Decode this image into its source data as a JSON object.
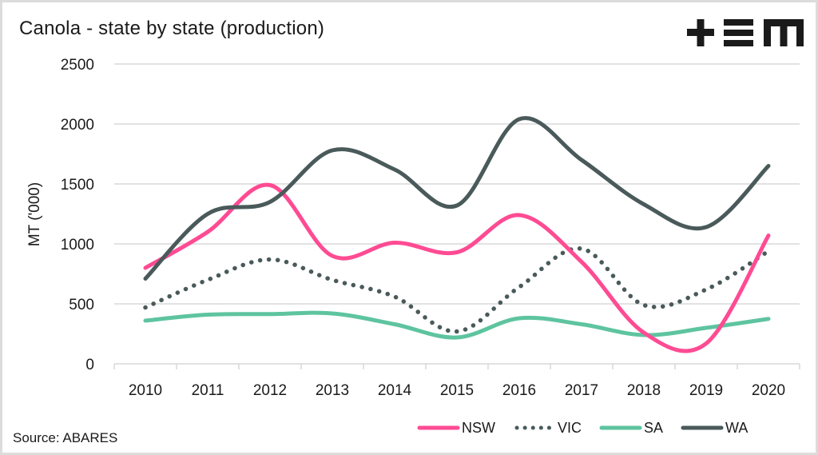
{
  "header": {
    "title": "Canola - state by state (production)",
    "logo_text": "+EM"
  },
  "footer": {
    "source": "Source: ABARES"
  },
  "chart_data": {
    "type": "line",
    "title": "Canola - state by state (production)",
    "xlabel": "",
    "ylabel": "MT ('000)",
    "ylim": [
      0,
      2500
    ],
    "yticks": [
      "0",
      "500",
      "1000",
      "1500",
      "2000",
      "2500"
    ],
    "ytick_values": [
      0,
      500,
      1000,
      1500,
      2000,
      2500
    ],
    "categories": [
      "2010",
      "2011",
      "2012",
      "2013",
      "2014",
      "2015",
      "2016",
      "2017",
      "2018",
      "2019",
      "2020"
    ],
    "grid": "horizontal",
    "smooth": true,
    "legend_position": "bottom-right",
    "series": [
      {
        "name": "NSW",
        "color": "#ff4b93",
        "style": "solid",
        "values": [
          800,
          1100,
          1490,
          900,
          1010,
          930,
          1240,
          850,
          260,
          170,
          1070
        ]
      },
      {
        "name": "VIC",
        "color": "#4a5a5a",
        "style": "dotted",
        "values": [
          470,
          700,
          870,
          700,
          560,
          270,
          640,
          960,
          490,
          620,
          940
        ]
      },
      {
        "name": "SA",
        "color": "#5ec4a0",
        "style": "solid",
        "values": [
          360,
          410,
          415,
          420,
          330,
          220,
          380,
          330,
          240,
          300,
          375
        ]
      },
      {
        "name": "WA",
        "color": "#4a5a5a",
        "style": "solid",
        "values": [
          710,
          1250,
          1350,
          1780,
          1620,
          1320,
          2040,
          1700,
          1330,
          1140,
          1650
        ]
      }
    ]
  }
}
